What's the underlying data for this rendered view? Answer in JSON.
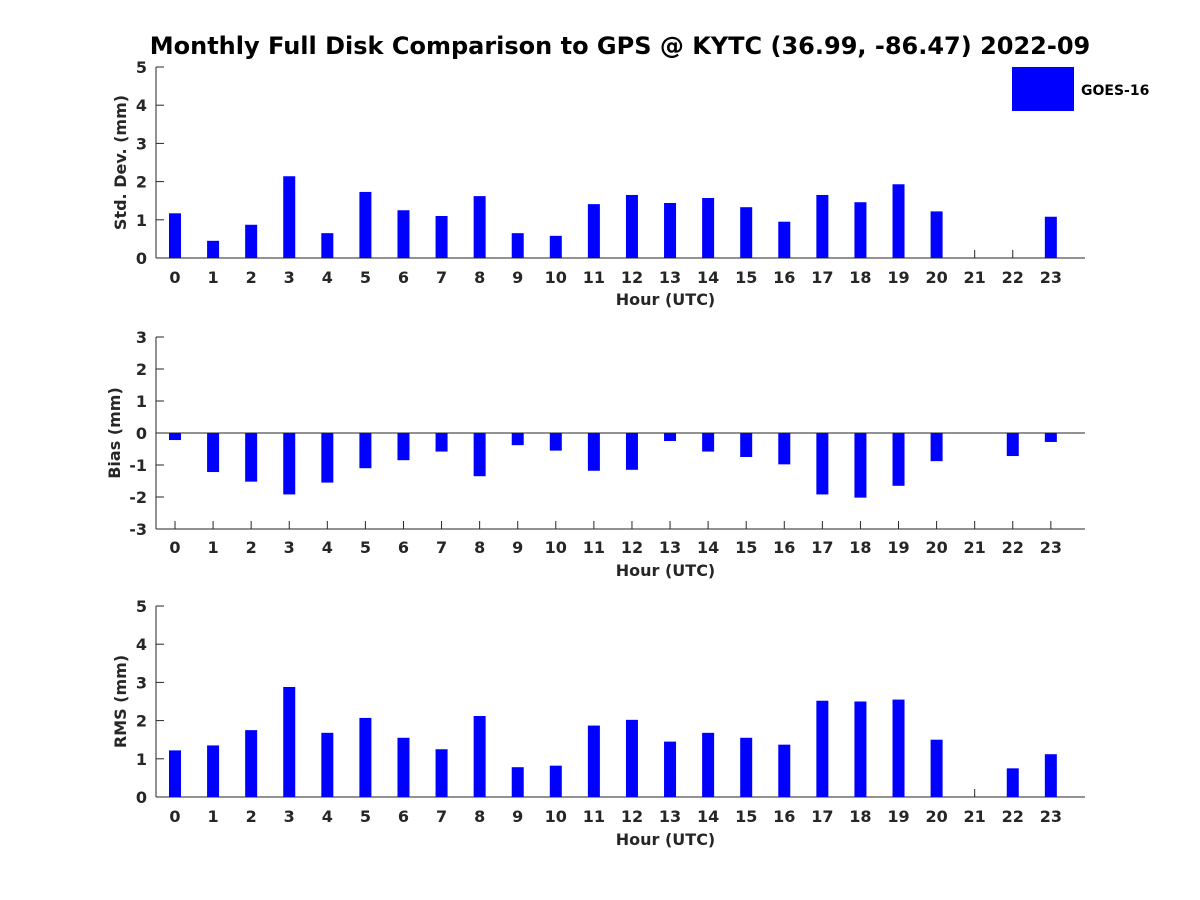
{
  "chart_title": "Monthly Full Disk Comparison to GPS @ KYTC (36.99, -86.47) 2022-09",
  "legend": {
    "label": "GOES-16",
    "color": "#0000ff",
    "placement": "top-right"
  },
  "chart_data": [
    {
      "type": "bar",
      "name": "std-dev",
      "ylabel": "Std. Dev. (mm)",
      "xlabel": "Hour (UTC)",
      "ylim": [
        0,
        5
      ],
      "yticks": [
        0,
        1,
        2,
        3,
        4,
        5
      ],
      "categories": [
        "0",
        "1",
        "2",
        "3",
        "4",
        "5",
        "6",
        "7",
        "8",
        "9",
        "10",
        "11",
        "12",
        "13",
        "14",
        "15",
        "16",
        "17",
        "18",
        "19",
        "20",
        "21",
        "22",
        "23"
      ],
      "series": [
        {
          "name": "GOES-16",
          "values": [
            1.17,
            0.45,
            0.87,
            2.14,
            0.65,
            1.73,
            1.25,
            1.1,
            1.62,
            0.65,
            0.58,
            1.41,
            1.65,
            1.44,
            1.57,
            1.33,
            0.95,
            1.65,
            1.46,
            1.93,
            1.22,
            0,
            0,
            1.08
          ]
        }
      ]
    },
    {
      "type": "bar",
      "name": "bias",
      "ylabel": "Bias (mm)",
      "xlabel": "Hour (UTC)",
      "ylim": [
        -3,
        3
      ],
      "yticks": [
        -3,
        -2,
        -1,
        0,
        1,
        2,
        3
      ],
      "categories": [
        "0",
        "1",
        "2",
        "3",
        "4",
        "5",
        "6",
        "7",
        "8",
        "9",
        "10",
        "11",
        "12",
        "13",
        "14",
        "15",
        "16",
        "17",
        "18",
        "19",
        "20",
        "21",
        "22",
        "23"
      ],
      "series": [
        {
          "name": "GOES-16",
          "values": [
            -0.22,
            -1.22,
            -1.52,
            -1.92,
            -1.55,
            -1.1,
            -0.85,
            -0.58,
            -1.35,
            -0.38,
            -0.55,
            -1.18,
            -1.15,
            -0.25,
            -0.58,
            -0.75,
            -0.98,
            -1.92,
            -2.02,
            -1.65,
            -0.88,
            0,
            -0.72,
            -0.28
          ]
        }
      ]
    },
    {
      "type": "bar",
      "name": "rms",
      "ylabel": "RMS (mm)",
      "xlabel": "Hour (UTC)",
      "ylim": [
        0,
        5
      ],
      "yticks": [
        0,
        1,
        2,
        3,
        4,
        5
      ],
      "categories": [
        "0",
        "1",
        "2",
        "3",
        "4",
        "5",
        "6",
        "7",
        "8",
        "9",
        "10",
        "11",
        "12",
        "13",
        "14",
        "15",
        "16",
        "17",
        "18",
        "19",
        "20",
        "21",
        "22",
        "23"
      ],
      "series": [
        {
          "name": "GOES-16",
          "values": [
            1.22,
            1.35,
            1.75,
            2.88,
            1.68,
            2.07,
            1.55,
            1.25,
            2.12,
            0.78,
            0.82,
            1.87,
            2.02,
            1.45,
            1.68,
            1.55,
            1.37,
            2.52,
            2.5,
            2.55,
            1.5,
            0,
            0.75,
            1.12
          ]
        }
      ]
    }
  ]
}
